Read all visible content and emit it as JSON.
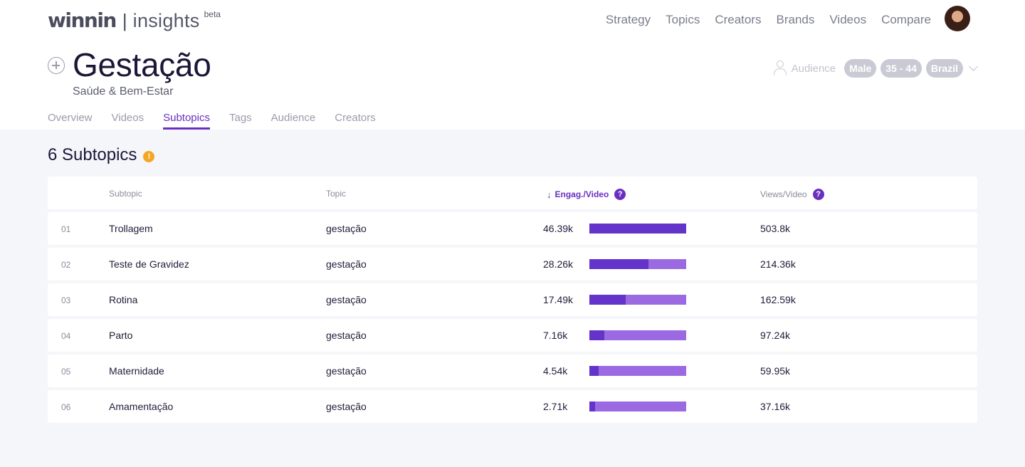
{
  "header": {
    "brand": "winnin",
    "separator": "|",
    "product": "insights",
    "beta": "beta",
    "nav": [
      "Strategy",
      "Topics",
      "Creators",
      "Brands",
      "Videos",
      "Compare"
    ]
  },
  "page": {
    "title": "Gestação",
    "subtitle": "Saúde & Bem-Estar"
  },
  "audience": {
    "label": "Audience",
    "chips": [
      "Male",
      "35 - 44",
      "Brazil"
    ]
  },
  "tabs": [
    {
      "label": "Overview",
      "active": false
    },
    {
      "label": "Videos",
      "active": false
    },
    {
      "label": "Subtopics",
      "active": true
    },
    {
      "label": "Tags",
      "active": false
    },
    {
      "label": "Audience",
      "active": false
    },
    {
      "label": "Creators",
      "active": false
    }
  ],
  "section": {
    "title": "6 Subtopics",
    "warning_glyph": "!"
  },
  "table": {
    "columns": {
      "subtopic": "Subtopic",
      "topic": "Topic",
      "engagement": "Engag./Video",
      "views": "Views/Video",
      "sort_arrow": "↓",
      "help_glyph": "?"
    },
    "rows": [
      {
        "rank": "01",
        "subtopic": "Trollagem",
        "topic": "gestação",
        "engagement": "46.39k",
        "engagement_value": 46390,
        "views": "503.8k"
      },
      {
        "rank": "02",
        "subtopic": "Teste de Gravidez",
        "topic": "gestação",
        "engagement": "28.26k",
        "engagement_value": 28260,
        "views": "214.36k"
      },
      {
        "rank": "03",
        "subtopic": "Rotina",
        "topic": "gestação",
        "engagement": "17.49k",
        "engagement_value": 17490,
        "views": "162.59k"
      },
      {
        "rank": "04",
        "subtopic": "Parto",
        "topic": "gestação",
        "engagement": "7.16k",
        "engagement_value": 7160,
        "views": "97.24k"
      },
      {
        "rank": "05",
        "subtopic": "Maternidade",
        "topic": "gestação",
        "engagement": "4.54k",
        "engagement_value": 4540,
        "views": "59.95k"
      },
      {
        "rank": "06",
        "subtopic": "Amamentação",
        "topic": "gestação",
        "engagement": "2.71k",
        "engagement_value": 2710,
        "views": "37.16k"
      }
    ]
  },
  "colors": {
    "accent": "#6a2fc1",
    "bar_fill": "#6433c9",
    "bar_track": "#9b6ae3",
    "warning": "#f5a623",
    "content_bg": "#f5f6fa"
  },
  "icons": {
    "add": "plus-circle-icon",
    "audience": "person-outline-icon",
    "dropdown": "chevron-down-icon",
    "warning": "warning-dot-icon",
    "help": "help-circle-icon",
    "sort": "arrow-down-icon"
  }
}
